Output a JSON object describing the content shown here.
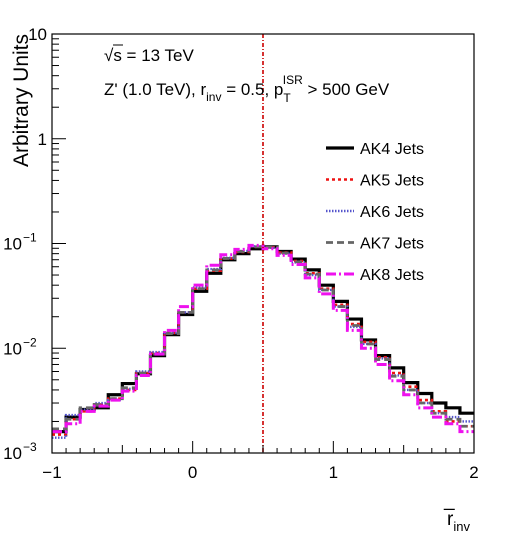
{
  "chart_data": {
    "type": "line",
    "subtype": "step-histogram",
    "yscale": "log",
    "xlim": [
      -1,
      2
    ],
    "ylim": [
      0.001,
      10
    ],
    "xlabel": "r̅",
    "xlabel_sub": "inv",
    "ylabel": "Arbitrary Units",
    "x_ticks": [
      {
        "v": -1,
        "label": "−1"
      },
      {
        "v": 0,
        "label": "0"
      },
      {
        "v": 1,
        "label": "1"
      },
      {
        "v": 2,
        "label": "2"
      }
    ],
    "y_ticks": [
      {
        "v": 0.001,
        "base": "10",
        "exp": "−3"
      },
      {
        "v": 0.01,
        "base": "10",
        "exp": "−2"
      },
      {
        "v": 0.1,
        "base": "10",
        "exp": "−1"
      },
      {
        "v": 1,
        "base": "1",
        "exp": ""
      },
      {
        "v": 10,
        "base": "10",
        "exp": ""
      }
    ],
    "annotations": {
      "energy": "√s = 13 TeV",
      "model_parts": [
        "Z' (1.0 TeV), r",
        "inv",
        " = 0.5, p",
        "T",
        "ISR",
        " > 500 GeV"
      ]
    },
    "reference_line": {
      "x": 0.5,
      "color": "#cc0000"
    },
    "legend_position": "right",
    "bin_edges": [
      -1,
      -0.9,
      -0.8,
      -0.7,
      -0.6,
      -0.5,
      -0.4,
      -0.3,
      -0.2,
      -0.1,
      0,
      0.1,
      0.2,
      0.3,
      0.4,
      0.5,
      0.6,
      0.7,
      0.8,
      0.9,
      1.0,
      1.1,
      1.2,
      1.3,
      1.4,
      1.5,
      1.6,
      1.7,
      1.8,
      1.9,
      2.0
    ],
    "series": [
      {
        "name": "AK4 Jets",
        "color": "#000000",
        "dash": "",
        "width": 3.2,
        "values": [
          0.0016,
          0.0022,
          0.0026,
          0.0027,
          0.0036,
          0.0046,
          0.0057,
          0.0085,
          0.0135,
          0.021,
          0.035,
          0.052,
          0.07,
          0.08,
          0.089,
          0.093,
          0.084,
          0.071,
          0.056,
          0.04,
          0.028,
          0.019,
          0.012,
          0.0085,
          0.0065,
          0.0047,
          0.0037,
          0.003,
          0.0027,
          0.0024
        ]
      },
      {
        "name": "AK5 Jets",
        "color": "#ee1111",
        "dash": "3,3",
        "width": 2.6,
        "values": [
          0.0015,
          0.0021,
          0.0025,
          0.0029,
          0.0033,
          0.004,
          0.0058,
          0.009,
          0.014,
          0.022,
          0.037,
          0.055,
          0.072,
          0.083,
          0.093,
          0.092,
          0.082,
          0.068,
          0.052,
          0.037,
          0.026,
          0.017,
          0.0115,
          0.0082,
          0.0058,
          0.0043,
          0.0032,
          0.0025,
          0.002,
          0.0018
        ]
      },
      {
        "name": "AK6 Jets",
        "color": "#5555cc",
        "dash": "1.5,1.5",
        "width": 2.4,
        "values": [
          0.0014,
          0.0023,
          0.0026,
          0.003,
          0.0032,
          0.0041,
          0.006,
          0.0092,
          0.014,
          0.022,
          0.038,
          0.057,
          0.073,
          0.085,
          0.094,
          0.091,
          0.08,
          0.066,
          0.05,
          0.036,
          0.025,
          0.016,
          0.011,
          0.008,
          0.0055,
          0.004,
          0.003,
          0.0024,
          0.0022,
          0.002
        ]
      },
      {
        "name": "AK7 Jets",
        "color": "#666666",
        "dash": "7,4",
        "width": 2.8,
        "values": [
          0.0017,
          0.0021,
          0.0027,
          0.0029,
          0.0033,
          0.0042,
          0.0058,
          0.0088,
          0.0138,
          0.022,
          0.037,
          0.056,
          0.072,
          0.084,
          0.093,
          0.092,
          0.081,
          0.067,
          0.051,
          0.036,
          0.025,
          0.0165,
          0.011,
          0.0078,
          0.0054,
          0.004,
          0.003,
          0.0024,
          0.0021,
          0.0018
        ]
      },
      {
        "name": "AK8 Jets",
        "color": "#ee11ee",
        "dash": "10,3,2,3",
        "width": 3.0,
        "values": [
          0.0016,
          0.0019,
          0.0025,
          0.0028,
          0.0032,
          0.0039,
          0.0055,
          0.0088,
          0.0148,
          0.025,
          0.04,
          0.062,
          0.078,
          0.088,
          0.096,
          0.089,
          0.077,
          0.063,
          0.047,
          0.033,
          0.023,
          0.0148,
          0.01,
          0.007,
          0.0049,
          0.0036,
          0.0027,
          0.0022,
          0.0019,
          0.0016
        ]
      }
    ]
  }
}
